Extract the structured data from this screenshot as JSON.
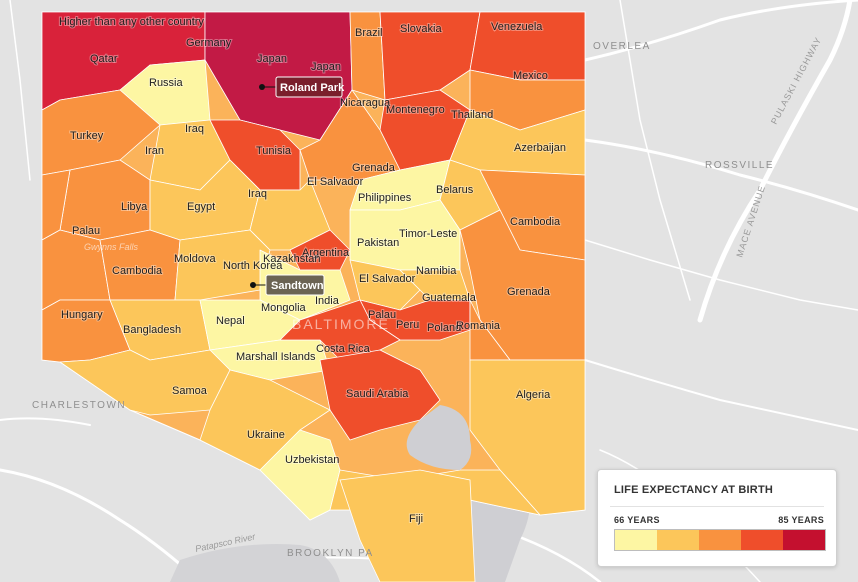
{
  "legend": {
    "title": "LIFE EXPECTANCY AT BIRTH",
    "min_label": "66 YEARS",
    "max_label": "85 YEARS",
    "min_years": 66,
    "max_years": 85,
    "colors": [
      "#fdf6a3",
      "#fcc65a",
      "#f9923f",
      "#ef4e2b",
      "#c4102f"
    ]
  },
  "callouts": {
    "roland_park": "Roland Park",
    "sandtown": "Sandtown"
  },
  "basemap_labels": {
    "city": "BALTIMORE",
    "overlea": "OVERLEA",
    "rossville": "ROSSVILLE",
    "charlestown": "CHARLESTOWN",
    "brooklyn_park": "BROOKLYN PA",
    "pulaski_highway": "PULASKI HIGHWAY",
    "mace_avenue": "MACE AVENUE",
    "patapsco_river": "Patapsco River",
    "gwynns_falls": "Gwynns Falls"
  },
  "country_labels": {
    "higher": "Higher than any other country",
    "qatar": "Qatar",
    "germany": "Germany",
    "japan_1": "Japan",
    "japan_2": "Japan",
    "brazil": "Brazil",
    "slovakia": "Slovakia",
    "venezuela": "Venezuela",
    "russia": "Russia",
    "mexico": "Mexico",
    "nicaragua": "Nicaragua",
    "montenegro": "Montenegro",
    "thailand": "Thailand",
    "turkey": "Turkey",
    "iraq_1": "Iraq",
    "iran": "Iran",
    "tunisia": "Tunisia",
    "azerbaijan": "Azerbaijan",
    "grenada_1": "Grenada",
    "el_salvador_1": "El Salvador",
    "belarus": "Belarus",
    "philippines": "Philippines",
    "iraq_2": "Iraq",
    "libya": "Libya",
    "egypt": "Egypt",
    "cambodia_1": "Cambodia",
    "palau_1": "Palau",
    "pakistan": "Pakistan",
    "timor_leste": "Timor-Leste",
    "argentina": "Argentina",
    "moldova": "Moldova",
    "kazakhstan": "Kazakhstan",
    "north_korea": "North Korea",
    "namibia": "Namibia",
    "cambodia_2": "Cambodia",
    "el_salvador_2": "El Salvador",
    "india": "India",
    "guatemala": "Guatemala",
    "grenada_2": "Grenada",
    "mongolia": "Mongolia",
    "hungary": "Hungary",
    "palau_2": "Palau",
    "bangladesh": "Bangladesh",
    "nepal": "Nepal",
    "peru": "Peru",
    "poland": "Poland",
    "romania": "Romania",
    "costa_rica": "Costa Rica",
    "marshall_islands": "Marshall Islands",
    "samoa": "Samoa",
    "saudi_arabia": "Saudi Arabia",
    "algeria": "Algeria",
    "ukraine": "Ukraine",
    "uzbekistan": "Uzbekistan",
    "fiji": "Fiji"
  }
}
